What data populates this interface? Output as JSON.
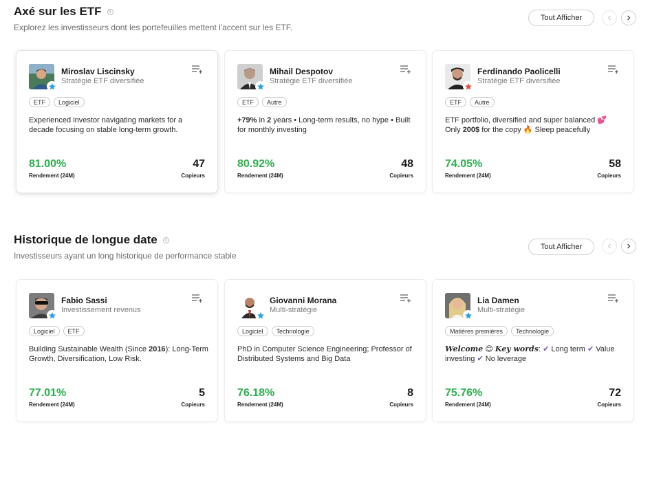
{
  "colors": {
    "gain_green": "#2bb24c",
    "star_blue": "#2a9fe6",
    "star_red": "#e0504a",
    "check_purple": "#7b4fc2"
  },
  "sections": [
    {
      "title": "Axé sur les ETF",
      "subtitle": "Explorez les investisseurs dont les portefeuilles mettent l'accent sur les ETF.",
      "show_all": "Tout Afficher",
      "cards": [
        {
          "name": "Miroslav Liscinsky",
          "strategy": "Stratégie ETF diversifiée",
          "tags": [
            "ETF",
            "Logiciel"
          ],
          "desc_line1": "Experienced investor navigating markets for a",
          "desc_line2": "decade focusing on stable long-term growth.",
          "gain": "81.00%",
          "gain_label": "Rendement (24M)",
          "copiers": "47",
          "copiers_label": "Copieurs",
          "star": "blue-star-icon"
        },
        {
          "name": "Mihail Despotov",
          "strategy": "Stratégie ETF diversifiée",
          "tags": [
            "ETF",
            "Autre"
          ],
          "desc_line1_a": "+79%",
          "desc_line1_b": " in ",
          "desc_line1_c": "2",
          "desc_line1_d": " years • Long-term results, no hype • Built",
          "desc_line2": "for monthly investing",
          "gain": "80.92%",
          "gain_label": "Rendement (24M)",
          "copiers": "48",
          "copiers_label": "Copieurs",
          "star": "blue-star-icon"
        },
        {
          "name": "Ferdinando Paolicelli",
          "strategy": "Stratégie ETF diversifiée",
          "tags": [
            "ETF",
            "Autre"
          ],
          "desc_line1": "ETF portfolio, diversified and super balanced 💕",
          "desc_line2_a": "Only ",
          "desc_line2_b": "200$",
          "desc_line2_c": " for the copy 🔥 Sleep peacefully",
          "gain": "74.05%",
          "gain_label": "Rendement (24M)",
          "copiers": "58",
          "copiers_label": "Copieurs",
          "star": "red-star-icon"
        }
      ]
    },
    {
      "title": "Historique de longue date",
      "subtitle": "Investisseurs ayant un long historique de performance stable",
      "show_all": "Tout Afficher",
      "cards": [
        {
          "name": "Fabio Sassi",
          "strategy": "Investissement revenus",
          "tags": [
            "Logiciel",
            "ETF"
          ],
          "desc_line1_a": "Building Sustainable Wealth (Since ",
          "desc_line1_b": "2016",
          "desc_line1_c": "): Long-Term",
          "desc_line2": "Growth, Diversification, Low Risk.",
          "gain": "77.01%",
          "gain_label": "Rendement (24M)",
          "copiers": "5",
          "copiers_label": "Copieurs",
          "star": "blue-star-icon"
        },
        {
          "name": "Giovanni Morana",
          "strategy": "Multi-stratégie",
          "tags": [
            "Logiciel",
            "Technologie"
          ],
          "desc_line1": "PhD in Computer Science Engineering; Professor of",
          "desc_line2": "Distributed Systems and Big Data",
          "gain": "76.18%",
          "gain_label": "Rendement (24M)",
          "copiers": "8",
          "copiers_label": "Copieurs",
          "star": "blue-star-icon"
        },
        {
          "name": "Lia Damen",
          "strategy": "Multi-stratégie",
          "tags": [
            "Matières premières",
            "Technologie"
          ],
          "desc_welcome": "Welcome",
          "desc_emoji": "😊",
          "desc_key": "Key words",
          "desc_colon": ":",
          "desc_w1": "Long term",
          "desc_w2": "Value",
          "desc_w3": "investing",
          "desc_w4": "No leverage",
          "desc_check": "✔",
          "gain": "75.76%",
          "gain_label": "Rendement (24M)",
          "copiers": "72",
          "copiers_label": "Copieurs",
          "star": "blue-star-icon"
        }
      ]
    }
  ]
}
